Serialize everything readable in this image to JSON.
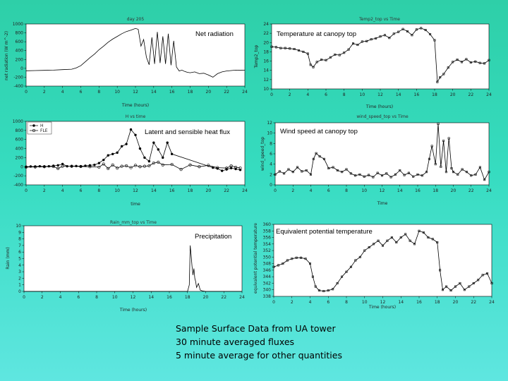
{
  "caption": {
    "line1": "Sample Surface Data from UA tower",
    "line2": "30 minute averaged fluxes",
    "line3": "5 minute average for other quantities"
  },
  "colors": {
    "line": "#000000",
    "frame": "#ffffff",
    "background_top": "#2ecfa8",
    "background_bottom": "#5fe6e0"
  },
  "chart_data": [
    {
      "id": "net-radiation",
      "type": "line",
      "title": "day 205",
      "inner_label": "Net radiation",
      "xlabel": "Time (hours)",
      "ylabel": "net radiation (W m^-2)",
      "xlim": [
        0,
        24
      ],
      "ylim": [
        -400,
        1000
      ],
      "xticks": [
        "0",
        "2",
        "4",
        "6",
        "8",
        "10",
        "12",
        "14",
        "16",
        "18",
        "20",
        "22",
        "24"
      ],
      "yticks": [
        "-400",
        "-200",
        "0",
        "200",
        "400",
        "600",
        "800",
        "1000"
      ],
      "marker": "none",
      "x": [
        0,
        1,
        2,
        3,
        4,
        5,
        5.5,
        6,
        6.5,
        7,
        7.5,
        8,
        8.5,
        9,
        9.5,
        10,
        10.5,
        11,
        11.5,
        12,
        12.3,
        12.6,
        12.9,
        13.2,
        13.5,
        13.8,
        14.1,
        14.4,
        14.7,
        15,
        15.3,
        15.6,
        15.9,
        16.2,
        16.5,
        16.8,
        17.1,
        17.4,
        17.7,
        18,
        18.5,
        19,
        19.5,
        20,
        20.5,
        21,
        21.5,
        22,
        22.5,
        23,
        23.5,
        24
      ],
      "y": [
        -55,
        -50,
        -45,
        -40,
        -30,
        -20,
        10,
        60,
        150,
        240,
        320,
        420,
        500,
        590,
        660,
        720,
        780,
        830,
        860,
        900,
        880,
        500,
        650,
        250,
        80,
        700,
        100,
        820,
        120,
        720,
        100,
        780,
        70,
        620,
        30,
        -60,
        -40,
        -70,
        -90,
        -100,
        -80,
        -120,
        -110,
        -150,
        -200,
        -120,
        -80,
        -60,
        -50,
        -40,
        -45,
        -40
      ]
    },
    {
      "id": "temperature-canopy",
      "type": "line",
      "title": "Temp2_top vs Time",
      "inner_label": "Temperature at canopy top",
      "xlabel": "Time (hours)",
      "ylabel": "Temp2_top",
      "xlim": [
        0,
        24
      ],
      "ylim": [
        10,
        24
      ],
      "xticks": [
        "0",
        "2",
        "4",
        "6",
        "8",
        "10",
        "12",
        "14",
        "16",
        "18",
        "20",
        "22",
        "24"
      ],
      "yticks": [
        "10",
        "12",
        "14",
        "16",
        "18",
        "20",
        "22",
        "24"
      ],
      "marker": "square",
      "x": [
        0,
        0.5,
        1,
        1.5,
        2,
        2.5,
        3,
        3.5,
        4,
        4.3,
        4.6,
        5,
        5.5,
        6,
        6.5,
        7,
        7.5,
        8,
        8.5,
        9,
        9.5,
        10,
        10.5,
        11,
        11.5,
        12,
        12.5,
        13,
        13.5,
        14,
        14.5,
        15,
        15.5,
        16,
        16.5,
        17,
        17.5,
        18,
        18.3,
        18.6,
        19,
        19.5,
        20,
        20.5,
        21,
        21.5,
        22,
        22.5,
        23,
        23.5,
        24
      ],
      "y": [
        19.1,
        19.0,
        18.8,
        18.8,
        18.7,
        18.6,
        18.3,
        18.0,
        17.6,
        15.2,
        14.7,
        15.8,
        16.3,
        16.2,
        16.8,
        17.4,
        17.3,
        17.8,
        18.5,
        19.8,
        19.5,
        20.2,
        20.3,
        20.7,
        20.9,
        21.3,
        21.6,
        21.0,
        21.9,
        22.3,
        22.9,
        22.4,
        21.6,
        22.8,
        23.1,
        22.7,
        21.8,
        20.5,
        11.5,
        12.5,
        13.2,
        14.6,
        15.8,
        16.3,
        15.8,
        16.4,
        15.7,
        15.9,
        15.6,
        15.5,
        16.2
      ]
    },
    {
      "id": "heat-flux",
      "type": "line",
      "title": "H vs time",
      "inner_label": "Latent and sensible heat flux",
      "xlabel": "time",
      "ylabel": "",
      "legend": [
        "H",
        "FLE"
      ],
      "xlim": [
        0,
        24
      ],
      "ylim": [
        -400,
        1000
      ],
      "xticks": [
        "0",
        "2",
        "4",
        "6",
        "8",
        "10",
        "12",
        "14",
        "16",
        "18",
        "20",
        "22",
        "24"
      ],
      "yticks": [
        "-400",
        "-200",
        "0",
        "200",
        "400",
        "600",
        "800",
        "1000"
      ],
      "series": [
        {
          "name": "H",
          "marker": "filled-circle",
          "x": [
            0,
            0.5,
            1,
            1.5,
            2,
            2.5,
            3,
            3.5,
            4,
            4.5,
            5,
            5.5,
            6,
            6.5,
            7,
            7.5,
            8,
            8.5,
            9,
            9.5,
            10,
            10.5,
            11,
            11.5,
            12,
            12.5,
            13,
            13.5,
            14,
            14.5,
            15,
            15.5,
            16,
            20.5,
            21,
            21.5,
            22,
            22.5,
            23,
            23.5
          ],
          "y": [
            0,
            5,
            5,
            10,
            5,
            10,
            20,
            30,
            60,
            10,
            10,
            15,
            10,
            20,
            30,
            40,
            80,
            150,
            250,
            280,
            310,
            450,
            500,
            820,
            700,
            400,
            200,
            120,
            530,
            380,
            200,
            530,
            280,
            -20,
            -40,
            -90,
            -60,
            -30,
            -50,
            -70
          ]
        },
        {
          "name": "FLE",
          "marker": "open-circle",
          "x": [
            0,
            1,
            2,
            3,
            3.5,
            4,
            5,
            6,
            7,
            8,
            8.5,
            9,
            9.5,
            10,
            10.5,
            11,
            11.5,
            12,
            12.5,
            13,
            13.5,
            14,
            14.5,
            15,
            16,
            17,
            18,
            19,
            20,
            21,
            22,
            22.5,
            23,
            23.5
          ],
          "y": [
            -10,
            -5,
            0,
            5,
            -40,
            10,
            10,
            5,
            0,
            -10,
            60,
            -40,
            40,
            -30,
            10,
            20,
            -20,
            30,
            0,
            10,
            20,
            80,
            100,
            40,
            50,
            -60,
            40,
            0,
            30,
            -20,
            -30,
            20,
            -10,
            -30
          ]
        }
      ]
    },
    {
      "id": "wind-speed",
      "type": "line",
      "title": "wind_speed_top vs Time",
      "inner_label": "Wind speed at canopy top",
      "xlabel": "Time",
      "ylabel": "wind_speed_top",
      "xlim": [
        0,
        24
      ],
      "ylim": [
        0,
        12
      ],
      "xticks": [
        "0",
        "2",
        "4",
        "6",
        "8",
        "10",
        "12",
        "14",
        "16",
        "18",
        "20",
        "22",
        "24"
      ],
      "yticks": [
        "0",
        "2",
        "4",
        "6",
        "8",
        "10",
        "12"
      ],
      "marker": "square",
      "x": [
        0,
        0.5,
        1,
        1.5,
        2,
        2.5,
        3,
        3.5,
        4,
        4.3,
        4.6,
        5,
        5.5,
        6,
        6.5,
        7,
        7.5,
        8,
        8.5,
        9,
        9.5,
        10,
        10.5,
        11,
        11.5,
        12,
        12.5,
        13,
        13.5,
        14,
        14.5,
        15,
        15.5,
        16,
        16.5,
        17,
        17.3,
        17.6,
        18,
        18.3,
        18.6,
        18.9,
        19.2,
        19.5,
        19.8,
        20,
        20.5,
        21,
        21.5,
        22,
        22.5,
        23,
        23.5,
        24
      ],
      "y": [
        2.0,
        2.6,
        2.2,
        3.0,
        2.5,
        3.4,
        2.6,
        2.8,
        2.0,
        5.0,
        6.1,
        5.5,
        5.0,
        3.2,
        3.4,
        2.8,
        2.5,
        3.0,
        2.2,
        1.8,
        2.0,
        1.6,
        1.9,
        1.5,
        2.3,
        1.8,
        2.2,
        1.5,
        2.0,
        2.8,
        1.9,
        2.3,
        1.6,
        2.0,
        1.8,
        2.5,
        5.0,
        7.5,
        4.0,
        11.8,
        3.5,
        8.5,
        2.5,
        9.0,
        3.2,
        2.5,
        2.0,
        3.0,
        2.5,
        1.8,
        2.0,
        3.4,
        1.0,
        2.5
      ]
    },
    {
      "id": "precipitation",
      "type": "line",
      "title": "Rain_mm_top vs Time",
      "inner_label": "Precipitation",
      "xlabel": "Time (hours)",
      "ylabel": "Rain (mm)",
      "xlim": [
        0,
        24
      ],
      "ylim": [
        0,
        10
      ],
      "xticks": [
        "0",
        "2",
        "4",
        "6",
        "8",
        "10",
        "12",
        "14",
        "16",
        "18",
        "20",
        "22",
        "24"
      ],
      "yticks": [
        "0",
        "1",
        "2",
        "3",
        "4",
        "5",
        "6",
        "7",
        "8",
        "9",
        "10"
      ],
      "marker": "none",
      "x": [
        0,
        18.0,
        18.2,
        18.3,
        18.4,
        18.5,
        18.6,
        18.7,
        18.8,
        18.9,
        19.0,
        19.2,
        19.4,
        19.6,
        20.0,
        24
      ],
      "y": [
        0,
        0,
        1.0,
        7.0,
        5.5,
        3.8,
        2.5,
        3.5,
        2.0,
        1.5,
        0.6,
        1.2,
        0.2,
        0.1,
        0,
        0
      ]
    },
    {
      "id": "equiv-potential-temperature",
      "type": "line",
      "title": "",
      "inner_label": "Equivalent potential temperature",
      "xlabel": "Time (hours)",
      "ylabel": "equivalent potential temperature",
      "xlim": [
        0,
        24
      ],
      "ylim": [
        338,
        360
      ],
      "xticks": [
        "0",
        "2",
        "4",
        "6",
        "8",
        "10",
        "12",
        "14",
        "16",
        "18",
        "20",
        "22",
        "24"
      ],
      "yticks": [
        "338",
        "340",
        "342",
        "344",
        "346",
        "348",
        "350",
        "352",
        "354",
        "356",
        "358",
        "360"
      ],
      "marker": "square",
      "x": [
        0,
        0.5,
        1,
        1.5,
        2,
        2.5,
        3,
        3.5,
        4,
        4.3,
        4.6,
        5,
        5.5,
        6,
        6.5,
        7,
        7.5,
        8,
        8.5,
        9,
        9.5,
        10,
        10.5,
        11,
        11.5,
        12,
        12.5,
        13,
        13.5,
        14,
        14.5,
        15,
        15.5,
        16,
        16.5,
        17,
        17.5,
        18,
        18.3,
        18.6,
        19,
        19.5,
        20,
        20.5,
        21,
        21.5,
        22,
        22.5,
        23,
        23.5,
        24
      ],
      "y": [
        347,
        347.5,
        348,
        349,
        349.5,
        349.8,
        349.8,
        349.5,
        348,
        344,
        341,
        339.8,
        339.6,
        339.8,
        340.2,
        342,
        344,
        345.5,
        347,
        349,
        350,
        352,
        353,
        354,
        355,
        353.5,
        355,
        356,
        354.5,
        356,
        357,
        355,
        354,
        358,
        357.5,
        356,
        355.5,
        354.5,
        346,
        340,
        341,
        339.8,
        341,
        342,
        340,
        341,
        342,
        343,
        344.5,
        345,
        342
      ]
    }
  ]
}
